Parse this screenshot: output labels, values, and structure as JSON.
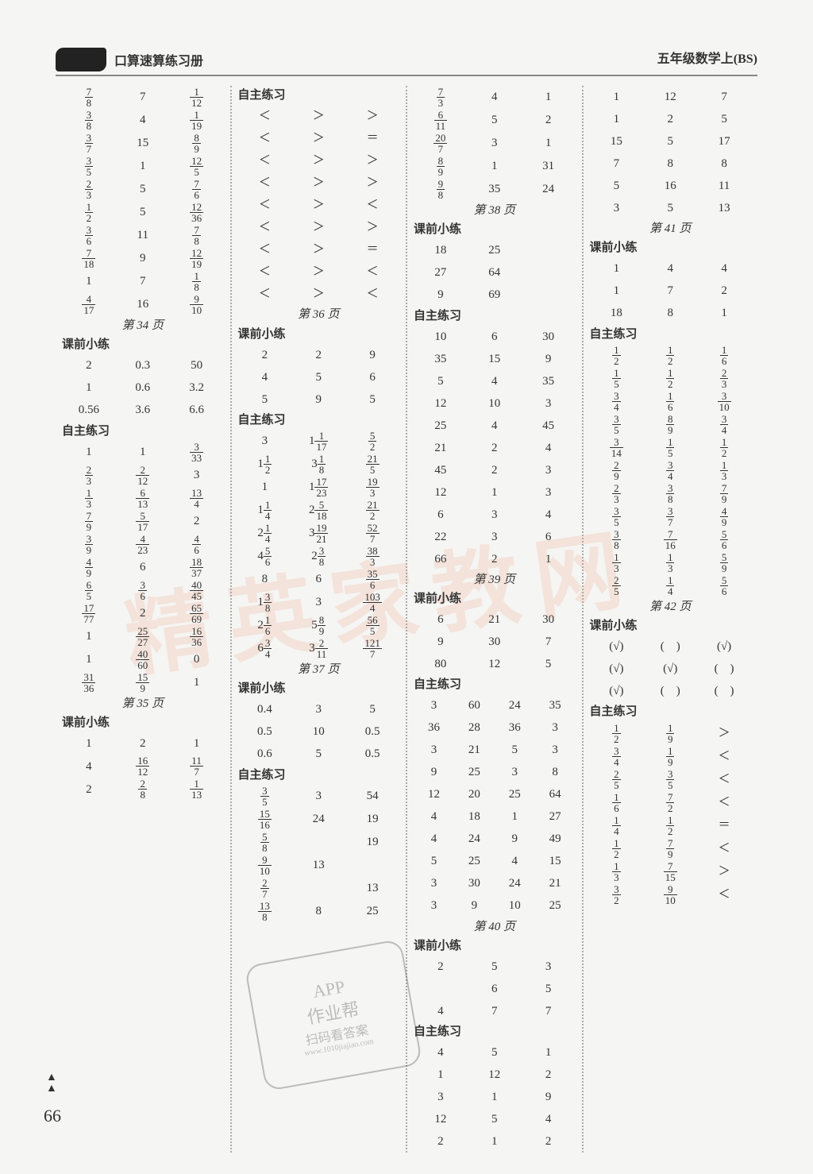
{
  "header": {
    "left": "口算速算练习册",
    "right": "五年级数学上(BS)"
  },
  "watermark": "精英家教网",
  "page_number": "66",
  "labels": {
    "pre": "课前小练",
    "self": "自主练习"
  },
  "pages": {
    "p34": "第 34 页",
    "p35": "第 35 页",
    "p36": "第 36 页",
    "p37": "第 37 页",
    "p38": "第 38 页",
    "p39": "第 39 页",
    "p40": "第 40 页",
    "p41": "第 41 页",
    "p42": "第 42 页"
  },
  "stamp": {
    "l1": "APP",
    "l2": "作业帮",
    "l3": "扫码看答案",
    "l4": "www.1010jiajiao.com"
  },
  "col1": [
    {
      "t": "r",
      "c": [
        "{7/8}",
        "7",
        "{1/12}"
      ]
    },
    {
      "t": "r",
      "c": [
        "{3/8}",
        "4",
        "{1/19}"
      ]
    },
    {
      "t": "r",
      "c": [
        "{3/7}",
        "15",
        "{8/9}"
      ]
    },
    {
      "t": "r",
      "c": [
        "{3/5}",
        "1",
        "{12/5}"
      ]
    },
    {
      "t": "r",
      "c": [
        "{2/3}",
        "5",
        "{7/6}"
      ]
    },
    {
      "t": "r",
      "c": [
        "{1/2}",
        "5",
        "{12/36}"
      ]
    },
    {
      "t": "r",
      "c": [
        "{3/6}",
        "11",
        "{7/8}"
      ]
    },
    {
      "t": "r",
      "c": [
        "{7/18}",
        "9",
        "{12/19}"
      ]
    },
    {
      "t": "r",
      "c": [
        "1",
        "7",
        "{1/8}"
      ]
    },
    {
      "t": "r",
      "c": [
        "{4/17}",
        "16",
        "{9/10}"
      ]
    },
    {
      "t": "pg",
      "k": "p34"
    },
    {
      "t": "h",
      "k": "pre"
    },
    {
      "t": "r",
      "c": [
        "2",
        "0.3",
        "50"
      ]
    },
    {
      "t": "r",
      "c": [
        "1",
        "0.6",
        "3.2"
      ]
    },
    {
      "t": "r",
      "c": [
        "0.56",
        "3.6",
        "6.6"
      ]
    },
    {
      "t": "h",
      "k": "self"
    },
    {
      "t": "r",
      "c": [
        "1",
        "1",
        "{3/33}"
      ]
    },
    {
      "t": "r",
      "c": [
        "{2/3}",
        "{2/12}",
        "3"
      ]
    },
    {
      "t": "r",
      "c": [
        "{1/3}",
        "{6/13}",
        "{13/4}"
      ]
    },
    {
      "t": "r",
      "c": [
        "{7/9}",
        "{5/17}",
        "2"
      ]
    },
    {
      "t": "r",
      "c": [
        "{3/9}",
        "{4/23}",
        "{4/6}"
      ]
    },
    {
      "t": "r",
      "c": [
        "{4/9}",
        "6",
        "{18/37}"
      ]
    },
    {
      "t": "r",
      "c": [
        "{6/5}",
        "{3/6}",
        "{40/45}"
      ]
    },
    {
      "t": "r",
      "c": [
        "{17/77}",
        "2",
        "{65/69}"
      ]
    },
    {
      "t": "r",
      "c": [
        "1",
        "{25/27}",
        "{16/36}"
      ]
    },
    {
      "t": "r",
      "c": [
        "1",
        "{40/60}",
        "0"
      ]
    },
    {
      "t": "r",
      "c": [
        "{31/36}",
        "{15/9}",
        "1"
      ]
    },
    {
      "t": "pg",
      "k": "p35"
    },
    {
      "t": "h",
      "k": "pre"
    },
    {
      "t": "r",
      "c": [
        "1",
        "2",
        "1"
      ]
    },
    {
      "t": "r",
      "c": [
        "4",
        "{16/12}",
        "{11/7}"
      ]
    },
    {
      "t": "r",
      "c": [
        "2",
        "{2/8}",
        "{1/13}"
      ]
    }
  ],
  "col2": [
    {
      "t": "h",
      "k": "self"
    },
    {
      "t": "r",
      "c": [
        "＜",
        "＞",
        "＞"
      ]
    },
    {
      "t": "r",
      "c": [
        "＜",
        "＞",
        "＝"
      ]
    },
    {
      "t": "r",
      "c": [
        "＜",
        "＞",
        "＞"
      ]
    },
    {
      "t": "r",
      "c": [
        "＜",
        "＞",
        "＞"
      ]
    },
    {
      "t": "r",
      "c": [
        "＜",
        "＞",
        "＜"
      ]
    },
    {
      "t": "r",
      "c": [
        "＜",
        "＞",
        "＞"
      ]
    },
    {
      "t": "r",
      "c": [
        "＜",
        "＞",
        "＝"
      ]
    },
    {
      "t": "r",
      "c": [
        "＜",
        "＞",
        "＜"
      ]
    },
    {
      "t": "r",
      "c": [
        "＜",
        "＞",
        "＜"
      ]
    },
    {
      "t": "pg",
      "k": "p36"
    },
    {
      "t": "h",
      "k": "pre"
    },
    {
      "t": "r",
      "c": [
        "2",
        "2",
        "9"
      ]
    },
    {
      "t": "r",
      "c": [
        "4",
        "5",
        "6"
      ]
    },
    {
      "t": "r",
      "c": [
        "5",
        "9",
        "5"
      ]
    },
    {
      "t": "h",
      "k": "self"
    },
    {
      "t": "r",
      "c": [
        "3",
        "1{1/17}",
        "{5/2}"
      ]
    },
    {
      "t": "r",
      "c": [
        "1{1/2}",
        "3{1/8}",
        "{21/5}"
      ]
    },
    {
      "t": "r",
      "c": [
        "1",
        "1{17/23}",
        "{19/3}"
      ]
    },
    {
      "t": "r",
      "c": [
        "1{1/4}",
        "2{5/18}",
        "{21/2}"
      ]
    },
    {
      "t": "r",
      "c": [
        "2{1/4}",
        "3{19/21}",
        "{52/7}"
      ]
    },
    {
      "t": "r",
      "c": [
        "4{5/6}",
        "2{3/8}",
        "{38/3}"
      ]
    },
    {
      "t": "r",
      "c": [
        "8",
        "6",
        "{35/6}"
      ]
    },
    {
      "t": "r",
      "c": [
        "1{3/8}",
        "3",
        "{103/4}"
      ]
    },
    {
      "t": "r",
      "c": [
        "2{1/6}",
        "5{8/9}",
        "{56/5}"
      ]
    },
    {
      "t": "r",
      "c": [
        "6{3/4}",
        "3{2/11}",
        "{121/7}"
      ]
    },
    {
      "t": "pg",
      "k": "p37"
    },
    {
      "t": "h",
      "k": "pre"
    },
    {
      "t": "r",
      "c": [
        "0.4",
        "3",
        "5"
      ]
    },
    {
      "t": "r",
      "c": [
        "0.5",
        "10",
        "0.5"
      ]
    },
    {
      "t": "r",
      "c": [
        "0.6",
        "5",
        "0.5"
      ]
    },
    {
      "t": "h",
      "k": "self"
    },
    {
      "t": "r",
      "c": [
        "{3/5}",
        "3",
        "54"
      ]
    },
    {
      "t": "r",
      "c": [
        "{15/16}",
        "24",
        "19"
      ]
    },
    {
      "t": "r",
      "c": [
        "{5/8}",
        "",
        "19"
      ]
    },
    {
      "t": "r",
      "c": [
        "{9/10}",
        "13",
        ""
      ]
    },
    {
      "t": "r",
      "c": [
        "{2/7}",
        "",
        "13"
      ]
    },
    {
      "t": "r",
      "c": [
        "{13/8}",
        "8",
        "25"
      ]
    }
  ],
  "col3": [
    {
      "t": "r",
      "c": [
        "{7/3}",
        "4",
        "1"
      ]
    },
    {
      "t": "r",
      "c": [
        "{6/11}",
        "5",
        "2"
      ]
    },
    {
      "t": "r",
      "c": [
        "{20/7}",
        "3",
        "1"
      ]
    },
    {
      "t": "r",
      "c": [
        "{8/9}",
        "1",
        "31"
      ]
    },
    {
      "t": "r",
      "c": [
        "{9/8}",
        "35",
        "24"
      ]
    },
    {
      "t": "pg",
      "k": "p38"
    },
    {
      "t": "h",
      "k": "pre"
    },
    {
      "t": "r",
      "c": [
        "18",
        "25",
        ""
      ]
    },
    {
      "t": "r",
      "c": [
        "27",
        "64",
        ""
      ]
    },
    {
      "t": "r",
      "c": [
        "9",
        "69",
        ""
      ]
    },
    {
      "t": "h",
      "k": "self"
    },
    {
      "t": "r",
      "c": [
        "10",
        "6",
        "30"
      ]
    },
    {
      "t": "r",
      "c": [
        "35",
        "15",
        "9"
      ]
    },
    {
      "t": "r",
      "c": [
        "5",
        "4",
        "35"
      ]
    },
    {
      "t": "r",
      "c": [
        "12",
        "10",
        "3"
      ]
    },
    {
      "t": "r",
      "c": [
        "25",
        "4",
        "45"
      ]
    },
    {
      "t": "r",
      "c": [
        "21",
        "2",
        "4"
      ]
    },
    {
      "t": "r",
      "c": [
        "45",
        "2",
        "3"
      ]
    },
    {
      "t": "r",
      "c": [
        "12",
        "1",
        "3"
      ]
    },
    {
      "t": "r",
      "c": [
        "6",
        "3",
        "4"
      ]
    },
    {
      "t": "r",
      "c": [
        "22",
        "3",
        "6"
      ]
    },
    {
      "t": "r",
      "c": [
        "66",
        "2",
        "1"
      ]
    },
    {
      "t": "pg",
      "k": "p39"
    },
    {
      "t": "h",
      "k": "pre"
    },
    {
      "t": "r",
      "c": [
        "6",
        "21",
        "30"
      ]
    },
    {
      "t": "r",
      "c": [
        "9",
        "30",
        "7"
      ]
    },
    {
      "t": "r",
      "c": [
        "80",
        "12",
        "5"
      ]
    },
    {
      "t": "h",
      "k": "self"
    },
    {
      "t": "r4",
      "c": [
        "3",
        "60",
        "24",
        "35"
      ]
    },
    {
      "t": "r4",
      "c": [
        "36",
        "28",
        "36",
        "3"
      ]
    },
    {
      "t": "r4",
      "c": [
        "3",
        "21",
        "5",
        "3"
      ]
    },
    {
      "t": "r4",
      "c": [
        "9",
        "25",
        "3",
        "8"
      ]
    },
    {
      "t": "r4",
      "c": [
        "12",
        "20",
        "25",
        "64"
      ]
    },
    {
      "t": "r4",
      "c": [
        "4",
        "18",
        "1",
        "27"
      ]
    },
    {
      "t": "r4",
      "c": [
        "4",
        "24",
        "9",
        "49"
      ]
    },
    {
      "t": "r4",
      "c": [
        "5",
        "25",
        "4",
        "15"
      ]
    },
    {
      "t": "r4",
      "c": [
        "3",
        "30",
        "24",
        "21"
      ]
    },
    {
      "t": "r4",
      "c": [
        "3",
        "9",
        "10",
        "25"
      ]
    },
    {
      "t": "pg",
      "k": "p40"
    },
    {
      "t": "h",
      "k": "pre"
    },
    {
      "t": "r",
      "c": [
        "2",
        "5",
        "3"
      ]
    },
    {
      "t": "r",
      "c": [
        "",
        "6",
        "5"
      ]
    },
    {
      "t": "r",
      "c": [
        "4",
        "7",
        "7"
      ]
    },
    {
      "t": "h",
      "k": "self"
    },
    {
      "t": "r",
      "c": [
        "4",
        "5",
        "1"
      ]
    },
    {
      "t": "r",
      "c": [
        "1",
        "12",
        "2"
      ]
    },
    {
      "t": "r",
      "c": [
        "3",
        "1",
        "9"
      ]
    },
    {
      "t": "r",
      "c": [
        "12",
        "5",
        "4"
      ]
    },
    {
      "t": "r",
      "c": [
        "2",
        "1",
        "2"
      ]
    }
  ],
  "col4": [
    {
      "t": "r",
      "c": [
        "1",
        "12",
        "7"
      ]
    },
    {
      "t": "r",
      "c": [
        "1",
        "2",
        "5"
      ]
    },
    {
      "t": "r",
      "c": [
        "15",
        "5",
        "17"
      ]
    },
    {
      "t": "r",
      "c": [
        "7",
        "8",
        "8"
      ]
    },
    {
      "t": "r",
      "c": [
        "5",
        "16",
        "11"
      ]
    },
    {
      "t": "r",
      "c": [
        "3",
        "5",
        "13"
      ]
    },
    {
      "t": "pg",
      "k": "p41"
    },
    {
      "t": "h",
      "k": "pre"
    },
    {
      "t": "r",
      "c": [
        "1",
        "4",
        "4"
      ]
    },
    {
      "t": "r",
      "c": [
        "1",
        "7",
        "2"
      ]
    },
    {
      "t": "r",
      "c": [
        "18",
        "8",
        "1"
      ]
    },
    {
      "t": "h",
      "k": "self"
    },
    {
      "t": "r",
      "c": [
        "{1/2}",
        "{1/2}",
        "{1/6}"
      ]
    },
    {
      "t": "r",
      "c": [
        "{1/5}",
        "{1/2}",
        "{2/3}"
      ]
    },
    {
      "t": "r",
      "c": [
        "{3/4}",
        "{1/6}",
        "{3/10}"
      ]
    },
    {
      "t": "r",
      "c": [
        "{3/5}",
        "{8/9}",
        "{3/4}"
      ]
    },
    {
      "t": "r",
      "c": [
        "{3/14}",
        "{1/5}",
        "{1/2}"
      ]
    },
    {
      "t": "r",
      "c": [
        "{2/9}",
        "{3/4}",
        "{1/3}"
      ]
    },
    {
      "t": "r",
      "c": [
        "{2/3}",
        "{3/8}",
        "{7/9}"
      ]
    },
    {
      "t": "r",
      "c": [
        "{3/5}",
        "{3/7}",
        "{4/9}"
      ]
    },
    {
      "t": "r",
      "c": [
        "{3/8}",
        "{7/16}",
        "{5/6}"
      ]
    },
    {
      "t": "r",
      "c": [
        "{1/3}",
        "{1/3}",
        "{5/9}"
      ]
    },
    {
      "t": "r",
      "c": [
        "{2/5}",
        "{1/4}",
        "{5/6}"
      ]
    },
    {
      "t": "pg",
      "k": "p42"
    },
    {
      "t": "h",
      "k": "pre"
    },
    {
      "t": "r",
      "c": [
        "(√)",
        "(　)",
        "(√)"
      ]
    },
    {
      "t": "r",
      "c": [
        "(√)",
        "(√)",
        "(　)"
      ]
    },
    {
      "t": "r",
      "c": [
        "(√)",
        "(　)",
        "(　)"
      ]
    },
    {
      "t": "h",
      "k": "self"
    },
    {
      "t": "r",
      "c": [
        "{1/2}",
        "{1/9}",
        "＞"
      ]
    },
    {
      "t": "r",
      "c": [
        "{3/4}",
        "{1/9}",
        "＜"
      ]
    },
    {
      "t": "r",
      "c": [
        "{2/5}",
        "{3/5}",
        "＜"
      ]
    },
    {
      "t": "r",
      "c": [
        "{1/6}",
        "{7/2}",
        "＜"
      ]
    },
    {
      "t": "r",
      "c": [
        "{1/4}",
        "{1/2}",
        "＝"
      ]
    },
    {
      "t": "r",
      "c": [
        "{1/2}",
        "{7/9}",
        "＜"
      ]
    },
    {
      "t": "r",
      "c": [
        "{1/3}",
        "{7/15}",
        "＞"
      ]
    },
    {
      "t": "r",
      "c": [
        "{3/2}",
        "{9/10}",
        "＜"
      ]
    }
  ]
}
